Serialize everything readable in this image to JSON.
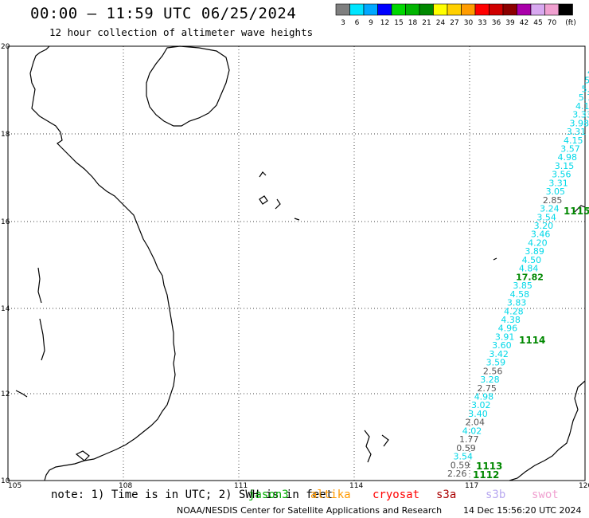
{
  "header": {
    "title": "00:00 – 11:59 UTC 06/25/2024",
    "subtitle": "12 hour collection of altimeter wave heights"
  },
  "scale": {
    "colors": [
      "#7f7f7f",
      "#00e5ff",
      "#00a8ff",
      "#0000ff",
      "#00d800",
      "#00b400",
      "#008800",
      "#ffff00",
      "#ffd000",
      "#ff9c00",
      "#ff0000",
      "#d00000",
      "#8c0000",
      "#aa00aa",
      "#d8a8f0",
      "#f0a0d0",
      "#000000"
    ],
    "labels": [
      "3",
      "6",
      "9",
      "12",
      "15",
      "18",
      "21",
      "24",
      "27",
      "30",
      "33",
      "36",
      "39",
      "42",
      "45",
      "70",
      "(ft)"
    ]
  },
  "map": {
    "lon_ticks": [
      "105",
      "108",
      "111",
      "114",
      "117",
      "120"
    ],
    "lat_ticks": [
      "20",
      "18",
      "16",
      "14",
      "12",
      "10"
    ],
    "track_values": [
      {
        "v": "4",
        "c": "cyan"
      },
      {
        "v": "5",
        "c": "cyan"
      },
      {
        "v": "5.",
        "c": "cyan"
      },
      {
        "v": "5.7",
        "c": "cyan"
      },
      {
        "v": "4.1",
        "c": "cyan"
      },
      {
        "v": "3.33",
        "c": "cyan"
      },
      {
        "v": "3.98",
        "c": "cyan"
      },
      {
        "v": "3.31",
        "c": "cyan"
      },
      {
        "v": "4.15",
        "c": "cyan"
      },
      {
        "v": "3.57",
        "c": "cyan"
      },
      {
        "v": "4.98",
        "c": "cyan"
      },
      {
        "v": "3.15",
        "c": "cyan"
      },
      {
        "v": "3.56",
        "c": "cyan"
      },
      {
        "v": "3.31",
        "c": "cyan"
      },
      {
        "v": "3.05",
        "c": "cyan"
      },
      {
        "v": "2.85",
        "c": "grey"
      },
      {
        "v": "3.24",
        "c": "cyan"
      },
      {
        "v": "3.54",
        "c": "cyan"
      },
      {
        "v": "3.20",
        "c": "cyan"
      },
      {
        "v": "3.46",
        "c": "cyan"
      },
      {
        "v": "4.20",
        "c": "cyan"
      },
      {
        "v": "3.89",
        "c": "cyan"
      },
      {
        "v": "4.50",
        "c": "cyan"
      },
      {
        "v": "4.84",
        "c": "cyan"
      },
      {
        "v": "17.82",
        "c": "green"
      },
      {
        "v": "3.85",
        "c": "cyan"
      },
      {
        "v": "4.58",
        "c": "cyan"
      },
      {
        "v": "3.83",
        "c": "cyan"
      },
      {
        "v": "4.28",
        "c": "cyan"
      },
      {
        "v": "4.38",
        "c": "cyan"
      },
      {
        "v": "4.96",
        "c": "cyan"
      },
      {
        "v": "3.91",
        "c": "cyan"
      },
      {
        "v": "3.60",
        "c": "cyan"
      },
      {
        "v": "3.42",
        "c": "cyan"
      },
      {
        "v": "3.59",
        "c": "cyan"
      },
      {
        "v": "2.56",
        "c": "grey"
      },
      {
        "v": "3.28",
        "c": "cyan"
      },
      {
        "v": "2.75",
        "c": "grey"
      },
      {
        "v": "4.98",
        "c": "cyan"
      },
      {
        "v": "3.02",
        "c": "cyan"
      },
      {
        "v": "3.40",
        "c": "cyan"
      },
      {
        "v": "2.04",
        "c": "grey"
      },
      {
        "v": "4.02",
        "c": "cyan"
      },
      {
        "v": "1.77",
        "c": "grey"
      },
      {
        "v": "0.59",
        "c": "grey"
      },
      {
        "v": "3.54",
        "c": "cyan"
      },
      {
        "v": "0.59",
        "c": "grey"
      },
      {
        "v": "2.26",
        "c": "grey"
      }
    ],
    "pass_labels": [
      "1115",
      "1114",
      "1113",
      "1112"
    ]
  },
  "footer": {
    "note": "note: 1) Time is in UTC; 2) SWH is in feet",
    "credits": "NOAA/NESDIS Center for Satellite Applications and Research",
    "date": "14 Dec 15:56:20 UTC 2024",
    "legend": [
      {
        "name": "jason3",
        "color": "#00aa00"
      },
      {
        "name": "altika",
        "color": "#ff9900"
      },
      {
        "name": "cryosat",
        "color": "#ff0000"
      },
      {
        "name": "s3a",
        "color": "#aa0000"
      },
      {
        "name": "s3b",
        "color": "#b8a8f0"
      },
      {
        "name": "swot",
        "color": "#f0a0d0"
      }
    ]
  }
}
